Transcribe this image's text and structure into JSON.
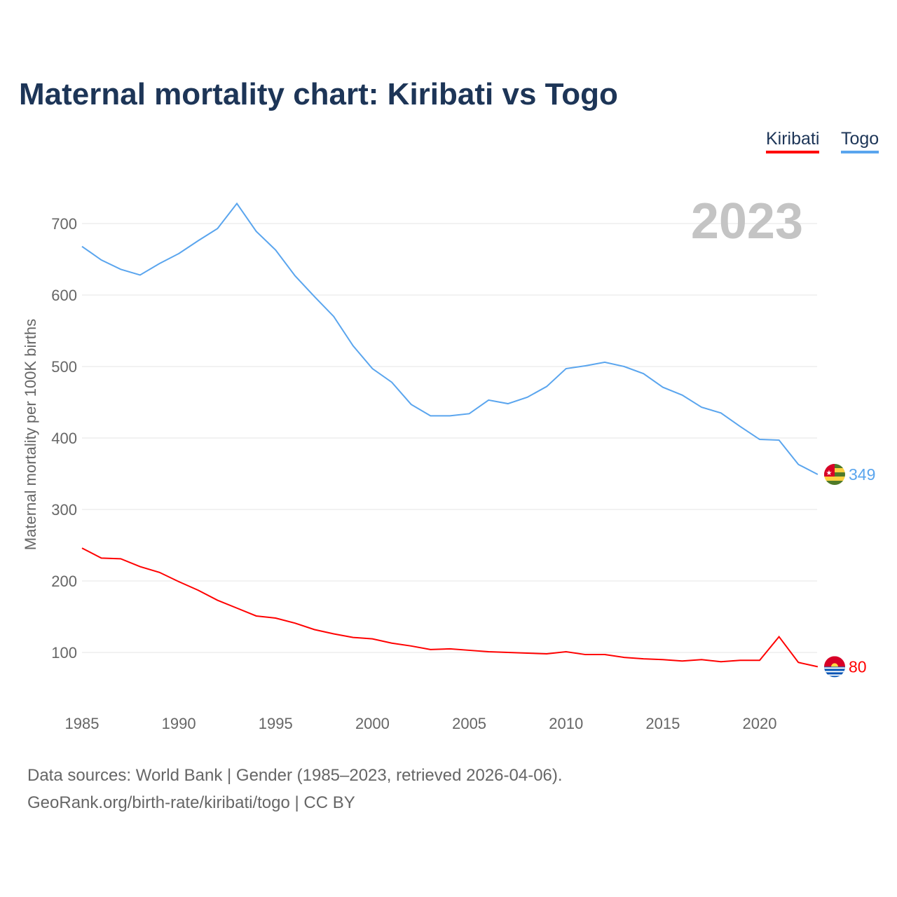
{
  "chart_data": {
    "type": "line",
    "title": "Maternal mortality chart: Kiribati vs Togo",
    "ylabel": "Maternal mortality per 100K births",
    "xlabel": "",
    "year_label": "2023",
    "xlim": [
      1985,
      2023
    ],
    "ylim": [
      50,
      740
    ],
    "yticks": [
      100,
      200,
      300,
      400,
      500,
      600,
      700
    ],
    "xticks": [
      1985,
      1990,
      1995,
      2000,
      2005,
      2010,
      2015,
      2020
    ],
    "grid": true,
    "legend_placement": "top-right",
    "x": [
      1985,
      1986,
      1987,
      1988,
      1989,
      1990,
      1991,
      1992,
      1993,
      1994,
      1995,
      1996,
      1997,
      1998,
      1999,
      2000,
      2001,
      2002,
      2003,
      2004,
      2005,
      2006,
      2007,
      2008,
      2009,
      2010,
      2011,
      2012,
      2013,
      2014,
      2015,
      2016,
      2017,
      2018,
      2019,
      2020,
      2021,
      2022,
      2023
    ],
    "series": [
      {
        "name": "Kiribati",
        "color": "#ff0000",
        "end_label": "80",
        "values": [
          246,
          232,
          231,
          220,
          212,
          199,
          187,
          173,
          162,
          151,
          148,
          141,
          132,
          126,
          121,
          119,
          113,
          109,
          104,
          105,
          103,
          101,
          100,
          99,
          98,
          101,
          97,
          97,
          93,
          91,
          90,
          88,
          90,
          87,
          89,
          89,
          122,
          86,
          80
        ]
      },
      {
        "name": "Togo",
        "color": "#5aa5ee",
        "end_label": "349",
        "values": [
          668,
          649,
          636,
          628,
          644,
          658,
          676,
          693,
          728,
          689,
          663,
          627,
          598,
          570,
          529,
          497,
          478,
          447,
          431,
          431,
          434,
          453,
          448,
          457,
          472,
          497,
          501,
          506,
          500,
          490,
          471,
          460,
          443,
          435,
          416,
          398,
          397,
          363,
          349
        ]
      }
    ]
  },
  "footer": {
    "line1": "Data sources: World Bank | Gender (1985–2023, retrieved 2026-04-06).",
    "line2": "GeoRank.org/birth-rate/kiribati/togo | CC BY"
  }
}
